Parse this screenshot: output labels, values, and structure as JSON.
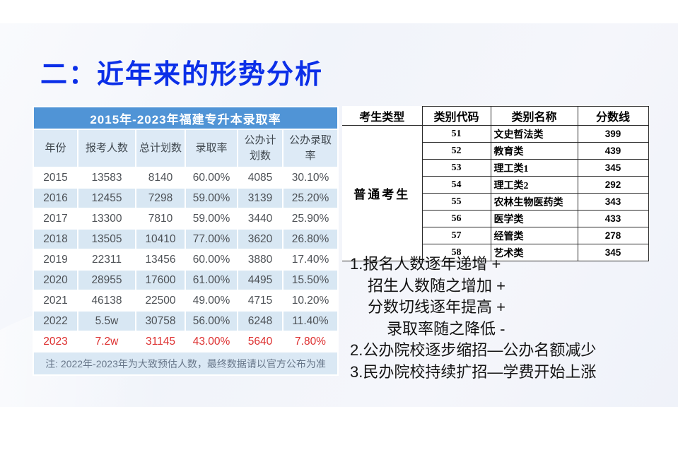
{
  "page": {
    "title": "二：近年来的形势分析"
  },
  "left_table": {
    "title": "2015年-2023年福建专升本录取率",
    "columns": [
      "年份",
      "报考人数",
      "总计划数",
      "录取率",
      "公办计划数",
      "公办录取率"
    ],
    "rows": [
      {
        "cells": [
          "2015",
          "13583",
          "8140",
          "60.00%",
          "4085",
          "30.10%"
        ],
        "highlight": false
      },
      {
        "cells": [
          "2016",
          "12455",
          "7298",
          "59.00%",
          "3139",
          "25.20%"
        ],
        "highlight": false
      },
      {
        "cells": [
          "2017",
          "13300",
          "7810",
          "59.00%",
          "3440",
          "25.90%"
        ],
        "highlight": false
      },
      {
        "cells": [
          "2018",
          "13505",
          "10410",
          "77.00%",
          "3620",
          "26.80%"
        ],
        "highlight": false
      },
      {
        "cells": [
          "2019",
          "22311",
          "13456",
          "60.00%",
          "3880",
          "17.40%"
        ],
        "highlight": false
      },
      {
        "cells": [
          "2020",
          "28955",
          "17600",
          "61.00%",
          "4495",
          "15.50%"
        ],
        "highlight": false
      },
      {
        "cells": [
          "2021",
          "46138",
          "22500",
          "49.00%",
          "4715",
          "10.20%"
        ],
        "highlight": false
      },
      {
        "cells": [
          "2022",
          "5.5w",
          "30758",
          "56.00%",
          "6248",
          "11.40%"
        ],
        "highlight": false
      },
      {
        "cells": [
          "2023",
          "7.2w",
          "31145",
          "43.00%",
          "5640",
          "7.80%"
        ],
        "highlight": true
      }
    ],
    "note": "注: 2022年-2023年为大致预估人数，最终数据请以官方公布为准",
    "colors": {
      "title_bg": "#5094d6",
      "header_bg": "#ddeaf6",
      "alt_row_bg": "#d8e7f3",
      "highlight_text": "#dd2f2f"
    }
  },
  "right_table": {
    "columns": [
      "考生类型",
      "类别代码",
      "类别名称",
      "分数线"
    ],
    "candidate_type": "普通考生",
    "rows": [
      [
        "51",
        "文史哲法类",
        "399"
      ],
      [
        "52",
        "教育类",
        "439"
      ],
      [
        "53",
        "理工类1",
        "345"
      ],
      [
        "54",
        "理工类2",
        "292"
      ],
      [
        "55",
        "农林生物医药类",
        "343"
      ],
      [
        "56",
        "医学类",
        "433"
      ],
      [
        "57",
        "经管类",
        "278"
      ],
      [
        "58",
        "艺术类",
        "345"
      ]
    ]
  },
  "analysis": {
    "lines": [
      {
        "text": "1.报名人数逐年递增 +",
        "indent": 0
      },
      {
        "text": "招生人数随之增加 +",
        "indent": 1
      },
      {
        "text": "分数切线逐年提高 +",
        "indent": 1
      },
      {
        "text": "录取率随之降低 -",
        "indent": 2
      },
      {
        "text": "2.公办院校逐步缩招—公办名额减少",
        "indent": 0
      },
      {
        "text": "3.民办院校持续扩招—学费开始上涨",
        "indent": 0
      }
    ]
  },
  "title_color": "#0b2fe8"
}
